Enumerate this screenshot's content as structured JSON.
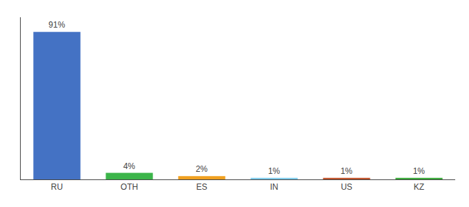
{
  "chart_data": {
    "type": "bar",
    "categories": [
      "RU",
      "OTH",
      "ES",
      "IN",
      "US",
      "KZ"
    ],
    "values": [
      91,
      4,
      2,
      1,
      1,
      1
    ],
    "value_labels": [
      "91%",
      "4%",
      "2%",
      "1%",
      "1%",
      "1%"
    ],
    "colors": [
      "#4472c4",
      "#3cb54a",
      "#f0a020",
      "#7ecbea",
      "#c0522a",
      "#3aaa3a"
    ],
    "ylim": [
      0,
      100
    ],
    "grid": false,
    "data_labels": true,
    "tick_labels": "x"
  }
}
